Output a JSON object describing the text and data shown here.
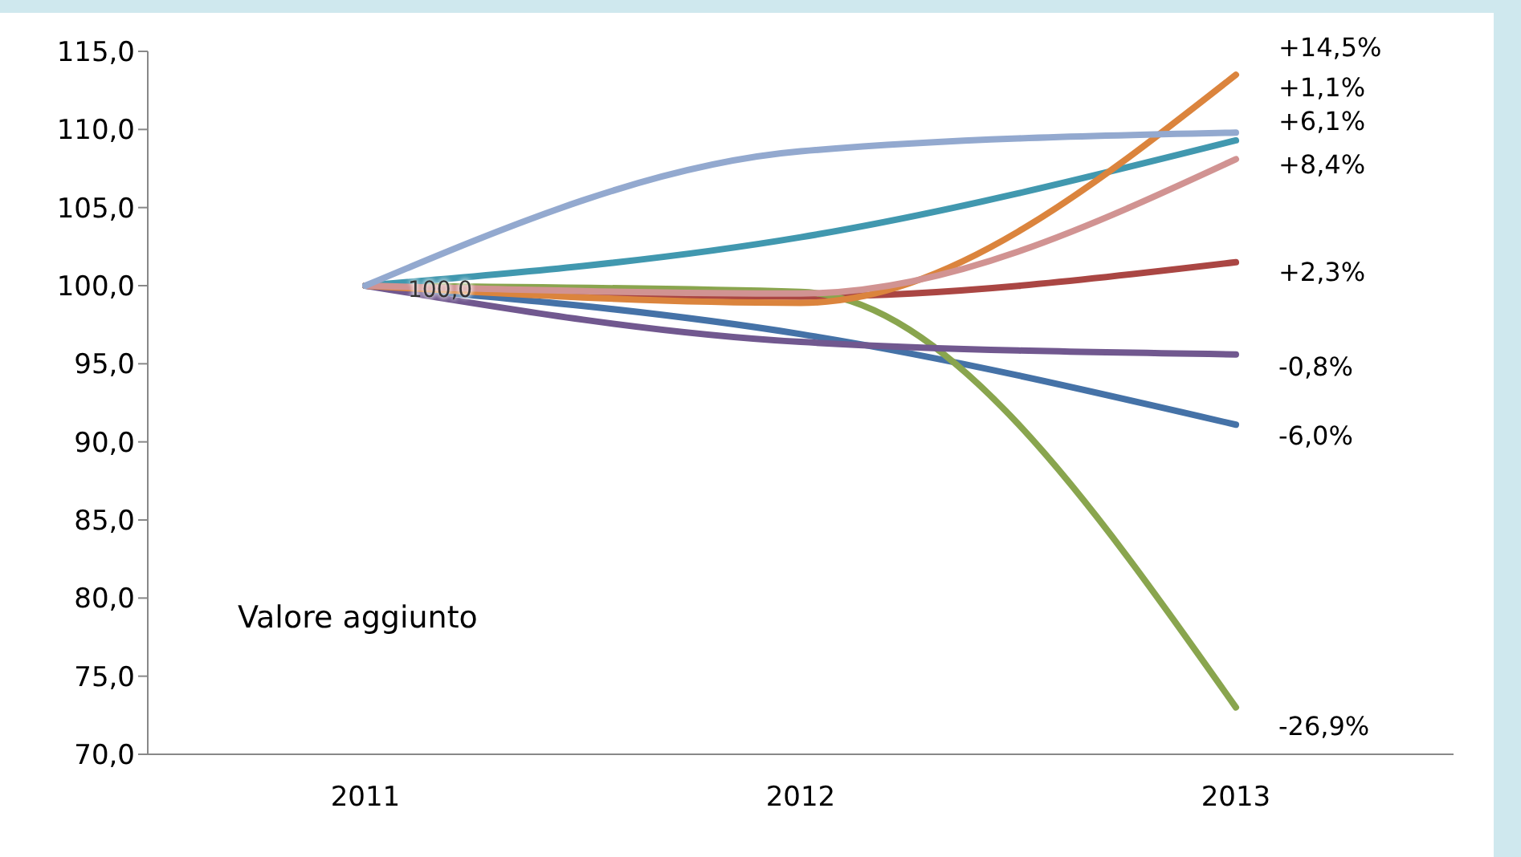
{
  "chart_data": {
    "type": "line",
    "categories": [
      "2011",
      "2012",
      "2013"
    ],
    "series": [
      {
        "color": "#4572a7",
        "values": [
          100,
          96.9,
          91.1
        ]
      },
      {
        "color": "#aa4643",
        "values": [
          100,
          99.3,
          101.5
        ]
      },
      {
        "color": "#89a54e",
        "values": [
          100,
          99.6,
          73.0
        ]
      },
      {
        "color": "#71588f",
        "values": [
          100,
          96.4,
          95.6
        ]
      },
      {
        "color": "#4198af",
        "values": [
          100,
          103.1,
          109.3
        ]
      },
      {
        "color": "#db843d",
        "values": [
          100,
          98.9,
          113.5
        ]
      },
      {
        "color": "#d19392",
        "values": [
          100,
          99.5,
          108.1
        ]
      },
      {
        "color": "#93a9cf",
        "values": [
          100,
          108.6,
          109.8
        ]
      }
    ],
    "ylim": [
      70,
      115
    ],
    "yticks": [
      {
        "value": 70,
        "label": "70,0"
      },
      {
        "value": 75,
        "label": "75,0"
      },
      {
        "value": 80,
        "label": "80,0"
      },
      {
        "value": 85,
        "label": "85,0"
      },
      {
        "value": 90,
        "label": "90,0"
      },
      {
        "value": 95,
        "label": "95,0"
      },
      {
        "value": 100,
        "label": "100,0"
      },
      {
        "value": 105,
        "label": "105,0"
      },
      {
        "value": 110,
        "label": "110,0"
      },
      {
        "value": 115,
        "label": "115,0"
      }
    ],
    "grid": false,
    "legend": false,
    "marker": "none",
    "line_style": "solid",
    "annotations": [
      "Valore aggiunto",
      "100,0",
      "+14,5%",
      "+1,1%",
      "+6,1%",
      "+8,4%",
      "+2,3%",
      "-0,8%",
      "-6,0%",
      "-26,9%"
    ]
  }
}
